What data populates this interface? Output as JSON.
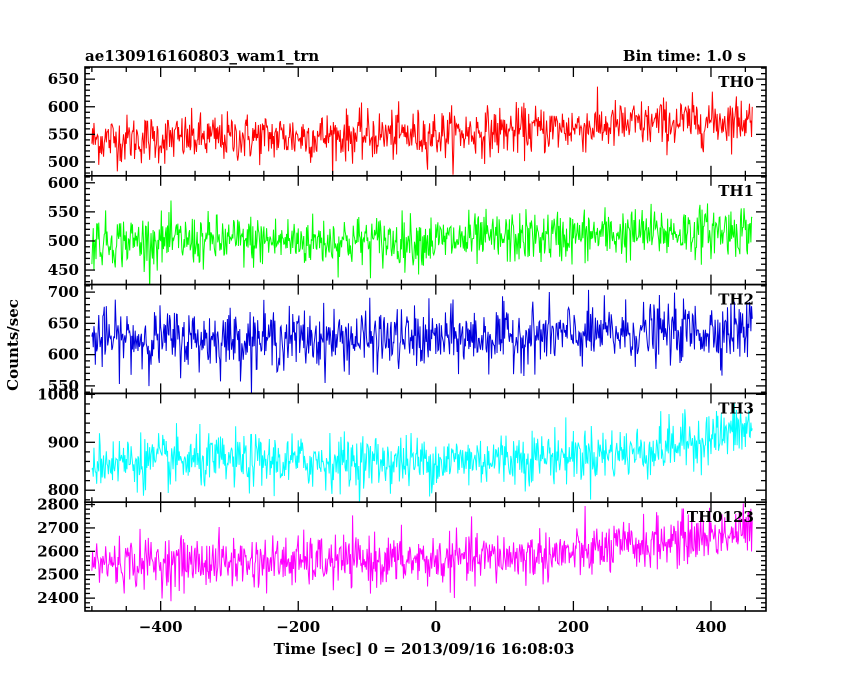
{
  "header": {
    "left_title": "ae130916160803_wam1_trn",
    "right_title": "Bin time: 1.0 s"
  },
  "chart_data": {
    "type": "line",
    "xlabel": "Time [sec] 0 = 2013/09/16 16:08:03",
    "ylabel": "Counts/sec",
    "xlim": [
      -510,
      480
    ],
    "data_xrange": [
      -500,
      460
    ],
    "bin_time": 1.0,
    "x_ticks": [
      -400,
      -200,
      0,
      200,
      400
    ],
    "x_tick_labels": [
      "−400",
      "−200",
      "0",
      "200",
      "400"
    ],
    "panels": [
      {
        "name": "TH0",
        "color": "#ff0000",
        "ylim": [
          475,
          672
        ],
        "y_ticks": [
          500,
          550,
          600,
          650
        ],
        "y_tick_labels": [
          "500",
          "550",
          "600",
          "650"
        ],
        "trend": {
          "x": [
            -500,
            0,
            460
          ],
          "y": [
            540,
            550,
            578
          ]
        },
        "noise_sd": 22,
        "min_seen": 475,
        "max_seen": 672
      },
      {
        "name": "TH1",
        "color": "#00ff00",
        "ylim": [
          425,
          612
        ],
        "y_ticks": [
          450,
          500,
          550,
          600
        ],
        "y_tick_labels": [
          "450",
          "500",
          "550",
          "600"
        ],
        "trend": {
          "x": [
            -500,
            0,
            460
          ],
          "y": [
            500,
            500,
            520
          ]
        },
        "noise_sd": 22,
        "min_seen": 427,
        "max_seen": 612
      },
      {
        "name": "TH2",
        "color": "#0000dd",
        "ylim": [
          538,
          712
        ],
        "y_ticks": [
          550,
          600,
          650,
          700
        ],
        "y_tick_labels": [
          "550",
          "600",
          "650",
          "700"
        ],
        "trend": {
          "x": [
            -500,
            0,
            460
          ],
          "y": [
            625,
            625,
            640
          ]
        },
        "noise_sd": 24,
        "min_seen": 540,
        "max_seen": 712
      },
      {
        "name": "TH3",
        "color": "#00ffff",
        "ylim": [
          775,
          1002
        ],
        "y_ticks": [
          800,
          900,
          1000
        ],
        "y_tick_labels": [
          "800",
          "900",
          "1000"
        ],
        "trend": {
          "x": [
            -500,
            0,
            300,
            460
          ],
          "y": [
            860,
            860,
            880,
            930
          ]
        },
        "noise_sd": 28,
        "min_seen": 800,
        "max_seen": 1002
      },
      {
        "name": "TH0123",
        "color": "#ff00ff",
        "ylim": [
          2345,
          2810
        ],
        "y_ticks": [
          2400,
          2500,
          2600,
          2700,
          2800
        ],
        "y_tick_labels": [
          "2400",
          "2500",
          "2600",
          "2700",
          "2800"
        ],
        "trend": {
          "x": [
            -500,
            0,
            200,
            460
          ],
          "y": [
            2550,
            2560,
            2590,
            2690
          ]
        },
        "noise_sd": 55,
        "min_seen": 2350,
        "max_seen": 2810
      }
    ]
  }
}
